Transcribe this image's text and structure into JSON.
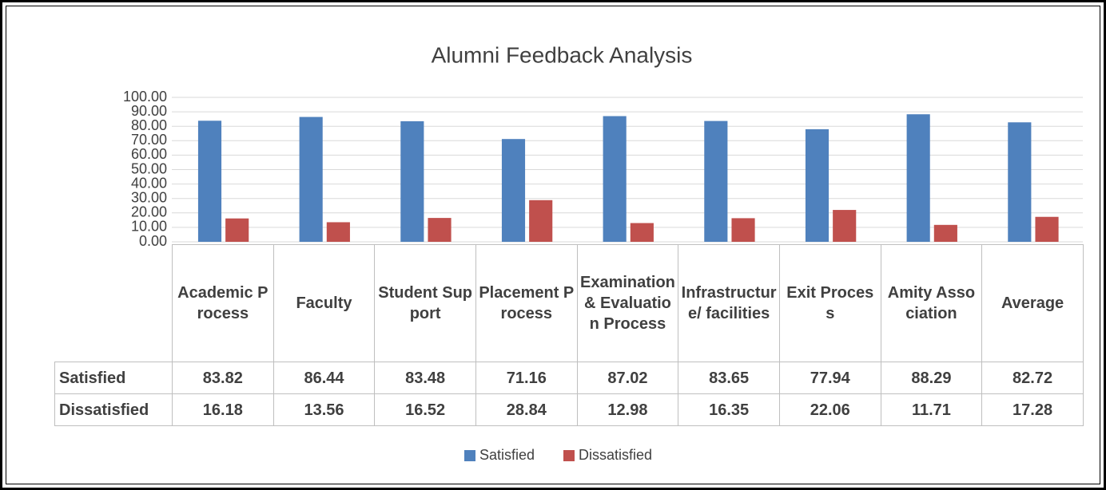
{
  "chart_data": {
    "type": "bar",
    "title": "Alumni Feedback Analysis",
    "categories": [
      "Academic Process",
      "Faculty",
      "Student Support",
      "Placement Process",
      "Examination & Evaluation Process",
      "Infrastructure/ facilities",
      "Exit Process",
      "Amity Association",
      "Average"
    ],
    "series": [
      {
        "name": "Satisfied",
        "color": "#4f81bd",
        "values": [
          83.82,
          86.44,
          83.48,
          71.16,
          87.02,
          83.65,
          77.94,
          88.29,
          82.72
        ]
      },
      {
        "name": "Dissatisfied",
        "color": "#c0504d",
        "values": [
          16.18,
          13.56,
          16.52,
          28.84,
          12.98,
          16.35,
          22.06,
          11.71,
          17.28
        ]
      }
    ],
    "ylim": [
      0,
      100
    ],
    "yticks": [
      {
        "value": 0,
        "label": "0.00"
      },
      {
        "value": 10,
        "label": "10.00"
      },
      {
        "value": 20,
        "label": "20.00"
      },
      {
        "value": 30,
        "label": "30.00"
      },
      {
        "value": 40,
        "label": "40.00"
      },
      {
        "value": 50,
        "label": "50.00"
      },
      {
        "value": 60,
        "label": "60.00"
      },
      {
        "value": 70,
        "label": "70.00"
      },
      {
        "value": 80,
        "label": "80.00"
      },
      {
        "value": 90,
        "label": "90.00"
      },
      {
        "value": 100,
        "label": "100.00"
      }
    ],
    "grid": true,
    "legend": "bottom"
  }
}
